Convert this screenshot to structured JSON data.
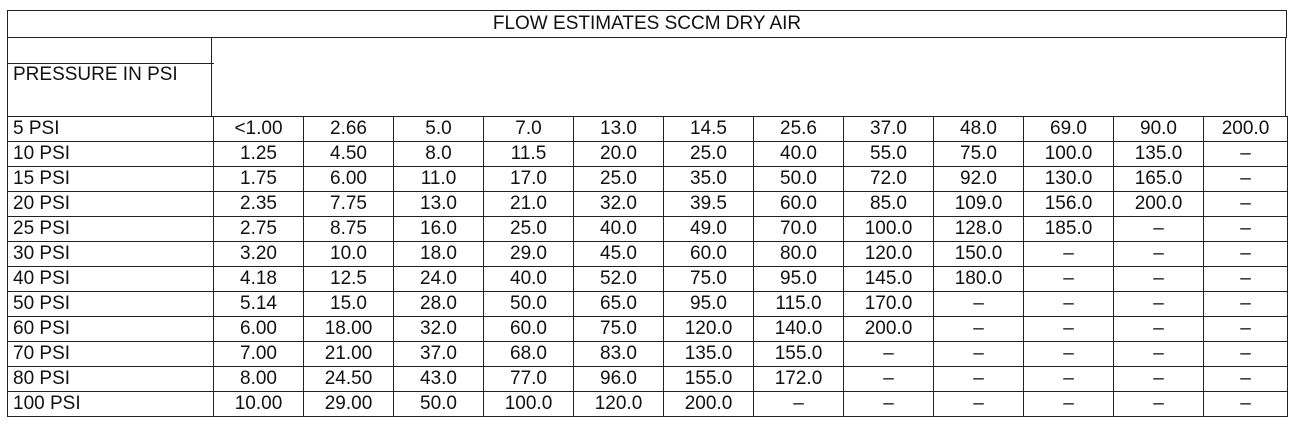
{
  "title": "FLOW ESTIMATES SCCM DRY AIR",
  "row_header": "PRESSURE IN PSI",
  "rows": [
    {
      "label": "5 PSI",
      "values": [
        "<1.00",
        "2.66",
        "5.0",
        "7.0",
        "13.0",
        "14.5",
        "25.6",
        "37.0",
        "48.0",
        "69.0",
        "90.0",
        "200.0"
      ]
    },
    {
      "label": "10 PSI",
      "values": [
        "1.25",
        "4.50",
        "8.0",
        "11.5",
        "20.0",
        "25.0",
        "40.0",
        "55.0",
        "75.0",
        "100.0",
        "135.0",
        "–"
      ]
    },
    {
      "label": "15 PSI",
      "values": [
        "1.75",
        "6.00",
        "11.0",
        "17.0",
        "25.0",
        "35.0",
        "50.0",
        "72.0",
        "92.0",
        "130.0",
        "165.0",
        "–"
      ]
    },
    {
      "label": "20 PSI",
      "values": [
        "2.35",
        "7.75",
        "13.0",
        "21.0",
        "32.0",
        "39.5",
        "60.0",
        "85.0",
        "109.0",
        "156.0",
        "200.0",
        "–"
      ]
    },
    {
      "label": "25 PSI",
      "values": [
        "2.75",
        "8.75",
        "16.0",
        "25.0",
        "40.0",
        "49.0",
        "70.0",
        "100.0",
        "128.0",
        "185.0",
        "–",
        "–"
      ]
    },
    {
      "label": "30 PSI",
      "values": [
        "3.20",
        "10.0",
        "18.0",
        "29.0",
        "45.0",
        "60.0",
        "80.0",
        "120.0",
        "150.0",
        "–",
        "–",
        "–"
      ]
    },
    {
      "label": "40 PSI",
      "values": [
        "4.18",
        "12.5",
        "24.0",
        "40.0",
        "52.0",
        "75.0",
        "95.0",
        "145.0",
        "180.0",
        "–",
        "–",
        "–"
      ]
    },
    {
      "label": "50 PSI",
      "values": [
        "5.14",
        "15.0",
        "28.0",
        "50.0",
        "65.0",
        "95.0",
        "115.0",
        "170.0",
        "–",
        "–",
        "–",
        "–"
      ]
    },
    {
      "label": "60 PSI",
      "values": [
        "6.00",
        "18.00",
        "32.0",
        "60.0",
        "75.0",
        "120.0",
        "140.0",
        "200.0",
        "–",
        "–",
        "–",
        "–"
      ]
    },
    {
      "label": "70 PSI",
      "values": [
        "7.00",
        "21.00",
        "37.0",
        "68.0",
        "83.0",
        "135.0",
        "155.0",
        "–",
        "–",
        "–",
        "–",
        "–"
      ]
    },
    {
      "label": "80 PSI",
      "values": [
        "8.00",
        "24.50",
        "43.0",
        "77.0",
        "96.0",
        "155.0",
        "172.0",
        "–",
        "–",
        "–",
        "–",
        "–"
      ]
    },
    {
      "label": "100 PSI",
      "values": [
        "10.00",
        "29.00",
        "50.0",
        "100.0",
        "120.0",
        "200.0",
        "–",
        "–",
        "–",
        "–",
        "–",
        "–"
      ]
    }
  ]
}
